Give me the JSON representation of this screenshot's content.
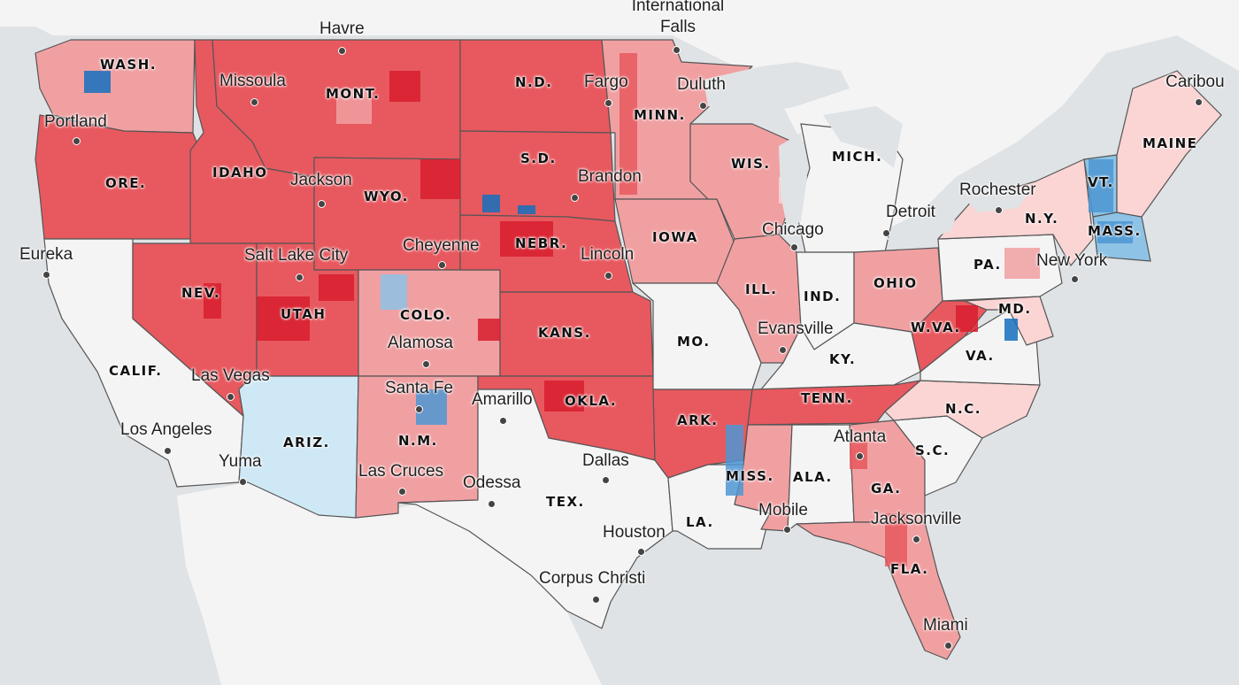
{
  "map": {
    "colors": {
      "water": "#dfe3e6",
      "land": "#f4f4f4",
      "strong_rep": "#d81e2e",
      "rep": "#e7595f",
      "lean_rep": "#f1a0a2",
      "slight_rep": "#fbd4d4",
      "slight_dem": "#cfe8f6",
      "lean_dem": "#8ec3e6",
      "dem": "#4d97d4",
      "strong_dem": "#1470be",
      "no_data": "#f4f4f4",
      "border": "#555555"
    },
    "states": [
      {
        "abbr": "WASH.",
        "fill": "lean_rep"
      },
      {
        "abbr": "ORE.",
        "fill": "rep"
      },
      {
        "abbr": "CALIF.",
        "fill": "no_data"
      },
      {
        "abbr": "IDAHO",
        "fill": "rep"
      },
      {
        "abbr": "NEV.",
        "fill": "rep"
      },
      {
        "abbr": "MONT.",
        "fill": "rep"
      },
      {
        "abbr": "WYO.",
        "fill": "rep"
      },
      {
        "abbr": "UTAH",
        "fill": "rep"
      },
      {
        "abbr": "COLO.",
        "fill": "lean_rep"
      },
      {
        "abbr": "ARIZ.",
        "fill": "slight_dem"
      },
      {
        "abbr": "N.M.",
        "fill": "lean_rep"
      },
      {
        "abbr": "N.D.",
        "fill": "rep"
      },
      {
        "abbr": "S.D.",
        "fill": "rep"
      },
      {
        "abbr": "NEBR.",
        "fill": "rep"
      },
      {
        "abbr": "KANS.",
        "fill": "rep"
      },
      {
        "abbr": "OKLA.",
        "fill": "rep"
      },
      {
        "abbr": "TEX.",
        "fill": "no_data"
      },
      {
        "abbr": "MINN.",
        "fill": "lean_rep"
      },
      {
        "abbr": "IOWA",
        "fill": "lean_rep"
      },
      {
        "abbr": "MO.",
        "fill": "no_data"
      },
      {
        "abbr": "ARK.",
        "fill": "rep"
      },
      {
        "abbr": "LA.",
        "fill": "no_data"
      },
      {
        "abbr": "WIS.",
        "fill": "lean_rep"
      },
      {
        "abbr": "ILL.",
        "fill": "lean_rep"
      },
      {
        "abbr": "MICH.",
        "fill": "no_data"
      },
      {
        "abbr": "IND.",
        "fill": "no_data"
      },
      {
        "abbr": "OHIO",
        "fill": "lean_rep"
      },
      {
        "abbr": "KY.",
        "fill": "no_data"
      },
      {
        "abbr": "TENN.",
        "fill": "rep"
      },
      {
        "abbr": "MISS.",
        "fill": "lean_rep"
      },
      {
        "abbr": "ALA.",
        "fill": "no_data"
      },
      {
        "abbr": "GA.",
        "fill": "lean_rep"
      },
      {
        "abbr": "FLA.",
        "fill": "lean_rep"
      },
      {
        "abbr": "S.C.",
        "fill": "no_data"
      },
      {
        "abbr": "N.C.",
        "fill": "slight_rep"
      },
      {
        "abbr": "VA.",
        "fill": "no_data"
      },
      {
        "abbr": "W.VA.",
        "fill": "rep"
      },
      {
        "abbr": "PA.",
        "fill": "no_data"
      },
      {
        "abbr": "N.Y.",
        "fill": "slight_rep"
      },
      {
        "abbr": "MD.",
        "fill": "slight_rep"
      },
      {
        "abbr": "VT.",
        "fill": "lean_dem"
      },
      {
        "abbr": "MASS.",
        "fill": "lean_dem"
      },
      {
        "abbr": "MAINE",
        "fill": "slight_rep"
      }
    ],
    "cities": [
      {
        "name": "Havre"
      },
      {
        "name_lines": [
          "International",
          "Falls"
        ]
      },
      {
        "name": "Missoula"
      },
      {
        "name": "Fargo"
      },
      {
        "name": "Duluth"
      },
      {
        "name": "Caribou"
      },
      {
        "name": "Portland"
      },
      {
        "name": "Jackson"
      },
      {
        "name": "Brandon"
      },
      {
        "name": "Rochester"
      },
      {
        "name": "Detroit"
      },
      {
        "name": "Chicago"
      },
      {
        "name": "Cheyenne"
      },
      {
        "name": "Lincoln"
      },
      {
        "name": "Salt Lake City"
      },
      {
        "name": "Eureka"
      },
      {
        "name": "New York"
      },
      {
        "name": "Evansville"
      },
      {
        "name": "Alamosa"
      },
      {
        "name": "Las Vegas"
      },
      {
        "name": "Santa Fe"
      },
      {
        "name": "Amarillo"
      },
      {
        "name": "Los Angeles"
      },
      {
        "name": "Atlanta"
      },
      {
        "name": "Yuma"
      },
      {
        "name": "Dallas"
      },
      {
        "name": "Las Cruces"
      },
      {
        "name": "Odessa"
      },
      {
        "name": "Mobile"
      },
      {
        "name": "Jacksonville"
      },
      {
        "name": "Houston"
      },
      {
        "name": "Corpus Christi"
      },
      {
        "name": "Miami"
      }
    ]
  }
}
